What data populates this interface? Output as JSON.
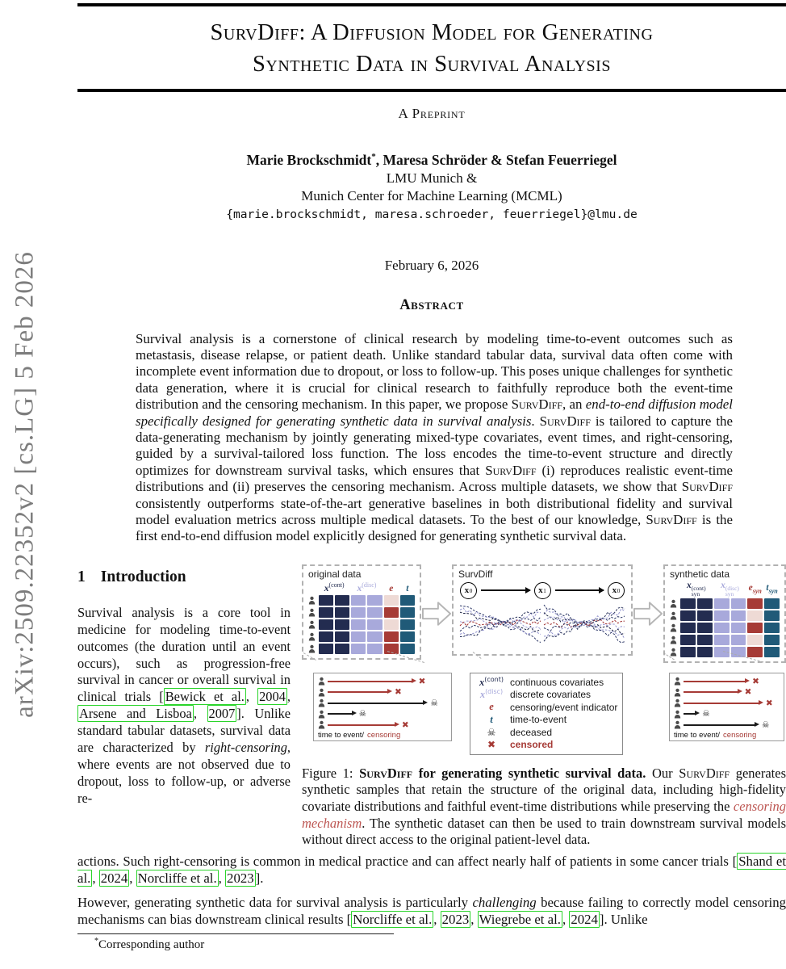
{
  "watermark": {
    "text": "arXiv:2509.22352v2  [cs.LG]  5 Feb 2026"
  },
  "header": {
    "title_line1": "SurvDiff: A Diffusion Model for Generating",
    "title_line2": "Synthetic Data in Survival Analysis",
    "preprint": "A Preprint",
    "author1": "Marie Brockschmidt",
    "author_sup": "*",
    "authors_rest": ", Maresa Schröder & Stefan Feuerriegel",
    "affiliation1": "LMU Munich &",
    "affiliation2": "Munich Center for Machine Learning (MCML)",
    "emails": "{marie.brockschmidt, maresa.schroeder, feuerriegel}@lmu.de",
    "date": "February 6, 2026"
  },
  "abstract": {
    "heading": "Abstract",
    "body": [
      {
        "t": "Survival analysis is a cornerstone of clinical research by modeling time-to-event outcomes such as metastasis, disease relapse, or patient death. Unlike standard tabular data, survival data often come with incomplete event information due to dropout, or loss to follow-up. This poses unique challenges for synthetic data generation, where it is crucial for clinical research to faithfully reproduce both the event-time distribution and the censoring mechanism. In this paper, we propose "
      },
      {
        "t": "SurvDiff",
        "s": "sc"
      },
      {
        "t": ", an "
      },
      {
        "t": "end-to-end diffusion model specifically designed for generating synthetic data in survival analysis",
        "s": "i"
      },
      {
        "t": ". "
      },
      {
        "t": "SurvDiff",
        "s": "sc"
      },
      {
        "t": " is tailored to capture the data-generating mechanism by jointly generating mixed-type covariates, event times, and right-censoring, guided by a survival-tailored loss function. The loss encodes the time-to-event structure and directly optimizes for downstream survival tasks, which ensures that "
      },
      {
        "t": "SurvDiff",
        "s": "sc"
      },
      {
        "t": " (i) reproduces realistic event-time distributions and (ii) preserves the censoring mechanism. Across multiple datasets, we show that "
      },
      {
        "t": "SurvDiff",
        "s": "sc"
      },
      {
        "t": " consistently outperforms state-of-the-art generative baselines in both distributional fidelity and survival model evaluation metrics across multiple medical datasets. To the best of our knowledge, "
      },
      {
        "t": "SurvDiff",
        "s": "sc"
      },
      {
        "t": " is the first end-to-end diffusion model explicitly designed for generating synthetic survival data."
      }
    ]
  },
  "intro": {
    "heading_num": "1",
    "heading_text": "Introduction",
    "para1": [
      {
        "t": "Survival analysis is a core tool in medicine for modeling time-to-event outcomes (the duration until an event occurs), such as progression-free survival in cancer or overall survival in clinical trials ["
      },
      {
        "t": "Bewick et al.",
        "s": "cite"
      },
      {
        "t": ", "
      },
      {
        "t": "2004",
        "s": "cite"
      },
      {
        "t": ", "
      },
      {
        "t": "Arsene and Lisboa",
        "s": "cite"
      },
      {
        "t": ", "
      },
      {
        "t": "2007",
        "s": "cite"
      },
      {
        "t": "]. Unlike standard tabular datasets, survival data are characterized by "
      },
      {
        "t": "right-censoring",
        "s": "i"
      },
      {
        "t": ", where events are not observed due to dropout, loss to follow-up, or adverse re-"
      }
    ],
    "cont1": [
      {
        "t": "actions. Such right-censoring is common in medical practice and can affect nearly half of patients in some cancer trials ["
      },
      {
        "t": "Shand et al.",
        "s": "cite"
      },
      {
        "t": ", "
      },
      {
        "t": "2024",
        "s": "cite"
      },
      {
        "t": ", "
      },
      {
        "t": "Norcliffe et al.",
        "s": "cite"
      },
      {
        "t": ", "
      },
      {
        "t": "2023",
        "s": "cite"
      },
      {
        "t": "]."
      }
    ],
    "cont2": [
      {
        "t": "However, generating synthetic data for survival analysis is particularly "
      },
      {
        "t": "challenging",
        "s": "i"
      },
      {
        "t": " because failing to correctly model censoring mechanisms can bias downstream clinical results ["
      },
      {
        "t": "Norcliffe et al.",
        "s": "cite"
      },
      {
        "t": ", "
      },
      {
        "t": "2023",
        "s": "cite"
      },
      {
        "t": ", "
      },
      {
        "t": "Wiegrebe et al.",
        "s": "cite"
      },
      {
        "t": ", "
      },
      {
        "t": "2024",
        "s": "cite"
      },
      {
        "t": "]. Unlike"
      }
    ]
  },
  "figure1": {
    "original": {
      "label": "original data",
      "headers": {
        "cont_base": "x",
        "cont_sup": "(cont)",
        "disc_base": "x",
        "disc_sup": "(disc)",
        "e": "e",
        "t": "t"
      },
      "rows": [
        {
          "e": "light"
        },
        {
          "e": "dark"
        },
        {
          "e": "light"
        },
        {
          "e": "dark"
        },
        {
          "e": "dark"
        }
      ]
    },
    "survdiff": {
      "label": "SurvDiff",
      "nodes": [
        "x",
        "x",
        "x"
      ],
      "node_subs": [
        "0",
        "1",
        "0"
      ]
    },
    "synthetic": {
      "label": "synthetic data",
      "headers": {
        "cont_base": "x",
        "cont_sub": "syn",
        "cont_sup": "(cont)",
        "disc_base": "x",
        "disc_sub": "syn",
        "disc_sup": "(disc)",
        "e_base": "e",
        "e_sub": "syn",
        "t_base": "t",
        "t_sub": "syn"
      },
      "rows": [
        {
          "e": "dark"
        },
        {
          "e": "light"
        },
        {
          "e": "dark"
        },
        {
          "e": "light"
        },
        {
          "e": "dark"
        }
      ]
    },
    "timeline_original": {
      "label_black": "time to event/",
      "label_red": "censoring",
      "rows": [
        {
          "len": 70,
          "type": "censored"
        },
        {
          "len": 50,
          "type": "censored"
        },
        {
          "len": 80,
          "type": "deceased"
        },
        {
          "len": 20,
          "type": "deceased"
        },
        {
          "len": 56,
          "type": "censored"
        }
      ]
    },
    "timeline_synthetic": {
      "label_black": "time to event/",
      "label_red": "censoring",
      "rows": [
        {
          "len": 64,
          "type": "censored"
        },
        {
          "len": 56,
          "type": "censored"
        },
        {
          "len": 78,
          "type": "censored"
        },
        {
          "len": 12,
          "type": "deceased"
        },
        {
          "len": 74,
          "type": "deceased"
        }
      ]
    },
    "legend": {
      "rows": [
        {
          "base": "x",
          "sup": "(cont)",
          "color": "navy",
          "text": "continuous covariates"
        },
        {
          "base": "x",
          "sup": "(disc)",
          "color": "purple",
          "text": "discrete covariates"
        },
        {
          "base": "e",
          "color": "red",
          "text": "censoring/event indicator"
        },
        {
          "base": "t",
          "color": "blue",
          "text": "time-to-event"
        },
        {
          "glyph": "skull",
          "text": "deceased"
        },
        {
          "glyph": "cross",
          "text": "censored",
          "text_red": true
        }
      ]
    },
    "caption": [
      {
        "t": "Figure 1: "
      },
      {
        "t": "SurvDiff",
        "s": "bsc"
      },
      {
        "t": " for generating synthetic survival data.",
        "s": "b"
      },
      {
        "t": "  Our "
      },
      {
        "t": "SurvDiff",
        "s": "sc"
      },
      {
        "t": " generates synthetic samples that retain the structure of the original data, including high-fidelity covariate distributions and faithful event-time distributions while preserving the "
      },
      {
        "t": "censoring mechanism",
        "s": "redi"
      },
      {
        "t": ". The synthetic dataset can then be used to train downstream survival models without direct access to the original patient-level data."
      }
    ]
  },
  "footnote": {
    "marker": "*",
    "text": "Corresponding author"
  },
  "colors": {
    "citation_box_green": "#2ad42a",
    "figure_red": "#a63b36",
    "figure_red_light": "#eedad5",
    "navy": "#232c50",
    "purple": "#a8a9db",
    "teal": "#205a78",
    "caption_red": "#bc5551",
    "watermark_gray": "#7d7d7d"
  }
}
